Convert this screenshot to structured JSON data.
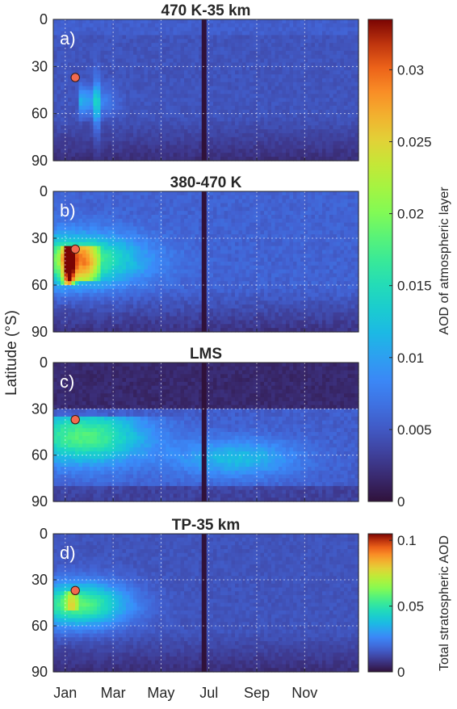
{
  "chart_data": [
    {
      "type": "heatmap",
      "panel_letter": "a)",
      "title": "470 K-35 km",
      "ylabel": "Latitude (°S)",
      "x_tick_labels": [
        "Jan",
        "Mar",
        "May",
        "Jul",
        "Sep",
        "Nov"
      ],
      "y_ticks": [
        0,
        30,
        60,
        90
      ],
      "ylim": [
        0,
        90
      ],
      "grid": true,
      "colorbar": "AOD of atmospheric layer",
      "features": {
        "background_aod": 0.004,
        "plume_peak_aod": 0.014,
        "plume_latitude_range_S": [
          40,
          60
        ],
        "missing_data_month": "Jul"
      },
      "marker": {
        "month": "Jan",
        "latitude_S": 37
      }
    },
    {
      "type": "heatmap",
      "panel_letter": "b)",
      "title": "380-470 K",
      "ylabel": "Latitude (°S)",
      "x_tick_labels": [
        "Jan",
        "Mar",
        "May",
        "Jul",
        "Sep",
        "Nov"
      ],
      "y_ticks": [
        0,
        30,
        60,
        90
      ],
      "ylim": [
        0,
        90
      ],
      "grid": true,
      "colorbar": "AOD of atmospheric layer",
      "features": {
        "background_aod": 0.005,
        "plume_peak_aod": 0.033,
        "plume_latitude_range_S": [
          35,
          60
        ],
        "missing_data_month": "Jul"
      },
      "marker": {
        "month": "Jan",
        "latitude_S": 37
      }
    },
    {
      "type": "heatmap",
      "panel_letter": "c)",
      "title": "LMS",
      "ylabel": "Latitude (°S)",
      "x_tick_labels": [
        "Jan",
        "Mar",
        "May",
        "Jul",
        "Sep",
        "Nov"
      ],
      "y_ticks": [
        0,
        30,
        60,
        90
      ],
      "ylim": [
        0,
        90
      ],
      "grid": true,
      "colorbar": "AOD of atmospheric layer",
      "features": {
        "background_aod": 0.001,
        "plume_peak_aod": 0.018,
        "plume_latitude_range_S": [
          32,
          80
        ],
        "missing_data_month": "Jul"
      },
      "marker": {
        "month": "Jan",
        "latitude_S": 37
      }
    },
    {
      "type": "heatmap",
      "panel_letter": "d)",
      "title": "TP-35 km",
      "ylabel": "Latitude (°S)",
      "x_tick_labels": [
        "Jan",
        "Mar",
        "May",
        "Jul",
        "Sep",
        "Nov"
      ],
      "y_ticks": [
        0,
        30,
        60,
        90
      ],
      "ylim": [
        0,
        90
      ],
      "grid": true,
      "colorbar": "Total stratospheric AOD",
      "features": {
        "background_aod": 0.012,
        "plume_peak_aod": 0.1,
        "plume_latitude_range_S": [
          35,
          60
        ],
        "missing_data_month": "Jul"
      },
      "marker": {
        "month": "Jan",
        "latitude_S": 37
      }
    }
  ],
  "shared_ylabel": "Latitude (°S)",
  "colorbars": [
    {
      "label": "AOD of atmospheric layer",
      "range": [
        0,
        0.0335
      ],
      "ticks": [
        "0",
        "0.005",
        "0.01",
        "0.015",
        "0.02",
        "0.025",
        "0.03"
      ],
      "tick_values": [
        0,
        0.005,
        0.01,
        0.015,
        0.02,
        0.025,
        0.03
      ],
      "colormap": "turbo"
    },
    {
      "label": "Total stratospheric AOD",
      "range": [
        0,
        0.105
      ],
      "ticks": [
        "0",
        "0.05",
        "0.1"
      ],
      "tick_values": [
        0,
        0.05,
        0.1
      ],
      "colormap": "turbo"
    }
  ],
  "colors": {
    "marker_fill": "#f26a4f",
    "grid": "#ffffff",
    "background": "#ffffff"
  }
}
